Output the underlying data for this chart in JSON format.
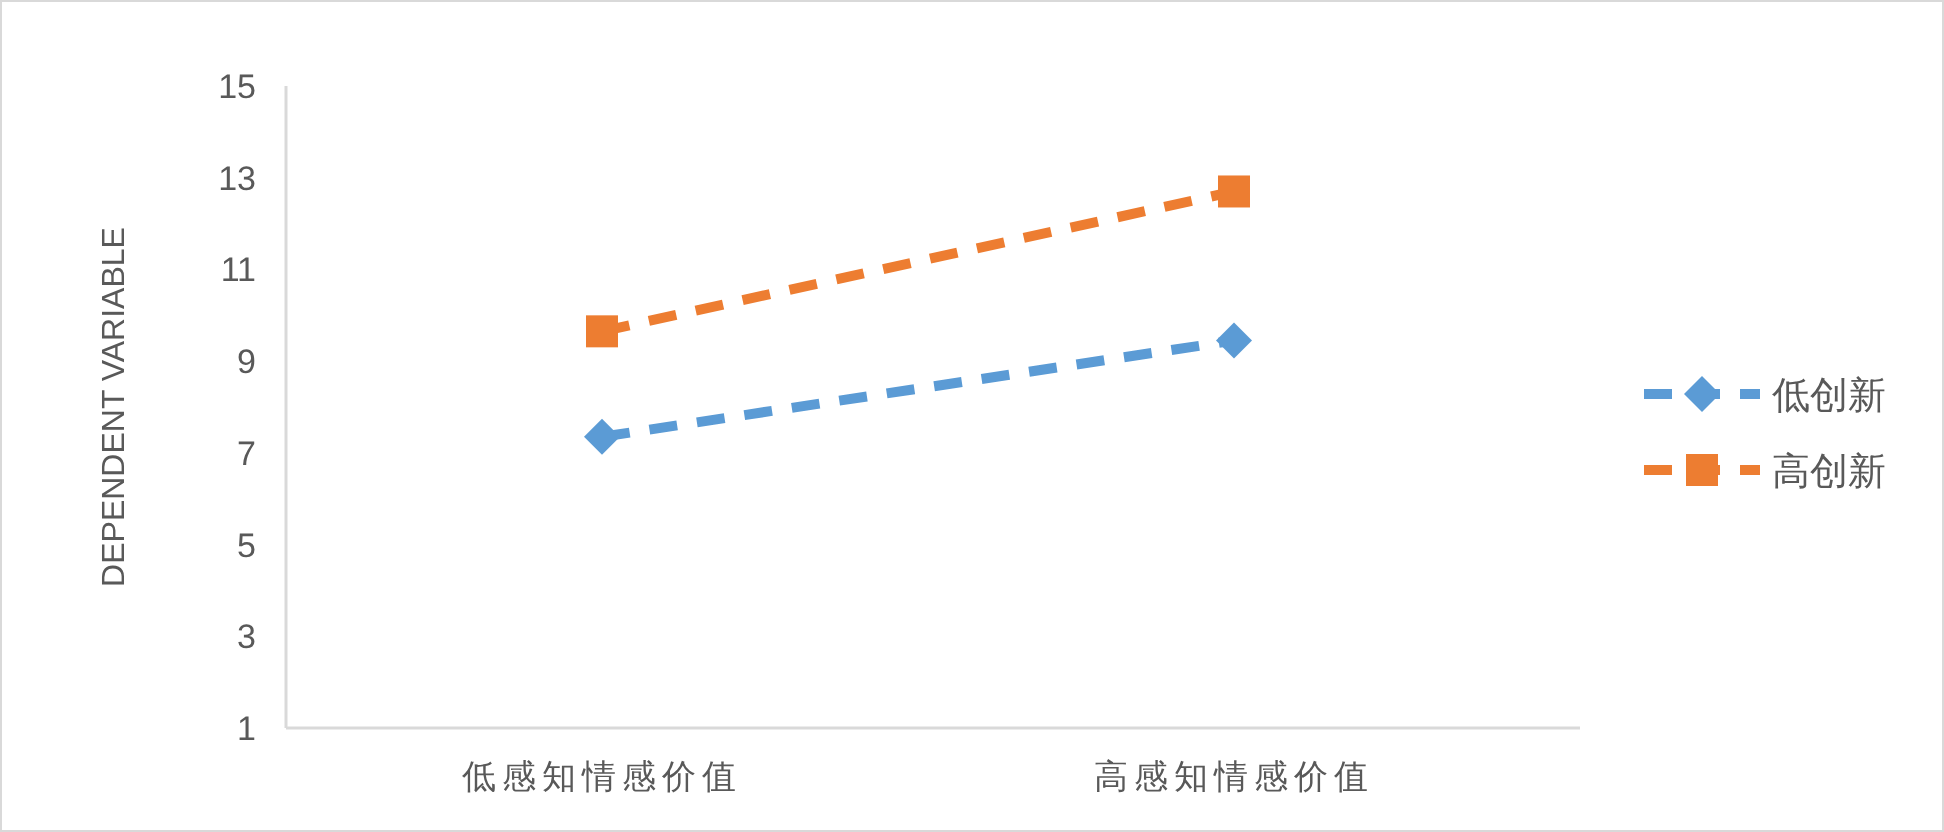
{
  "chart_data": {
    "type": "line",
    "ylabel": "DEPENDENT VARIABLE",
    "categories": [
      "低感知情感价值",
      "高感知情感价值"
    ],
    "series": [
      {
        "name": "低创新",
        "color": "#5b9bd5",
        "values": [
          7.35,
          9.45
        ],
        "marker": "diamond",
        "line_style": "dashed"
      },
      {
        "name": "高创新",
        "color": "#ed7d31",
        "values": [
          9.65,
          12.7
        ],
        "marker": "square",
        "line_style": "dashed"
      }
    ],
    "ylim": [
      1,
      15
    ],
    "yticks": [
      1,
      3,
      5,
      7,
      9,
      11,
      13,
      15
    ],
    "grid": false,
    "legend": "right"
  }
}
